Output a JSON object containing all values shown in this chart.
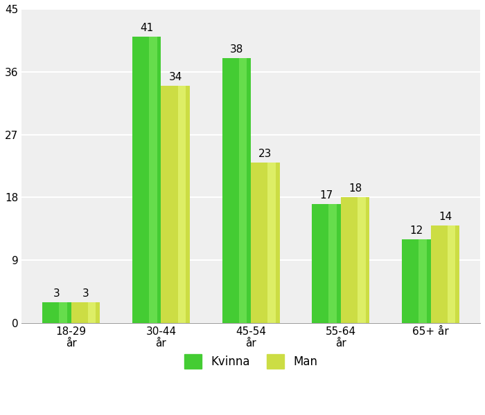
{
  "categories": [
    "18-29\når",
    "30-44\når",
    "45-54\når",
    "55-64\når",
    "65+ år"
  ],
  "kvinna": [
    3,
    41,
    38,
    17,
    12
  ],
  "man": [
    3,
    34,
    23,
    18,
    14
  ],
  "kvinna_color": "#44CC33",
  "man_color": "#CCDD44",
  "ylim": [
    0,
    45
  ],
  "yticks": [
    0,
    9,
    18,
    27,
    36,
    45
  ],
  "legend_kvinna": "Kvinna",
  "legend_man": "Man",
  "bar_width": 0.32,
  "figure_bg_color": "#FFFFFF",
  "plot_bg_color": "#EFEFEF",
  "label_fontsize": 11,
  "tick_fontsize": 11,
  "legend_fontsize": 12
}
